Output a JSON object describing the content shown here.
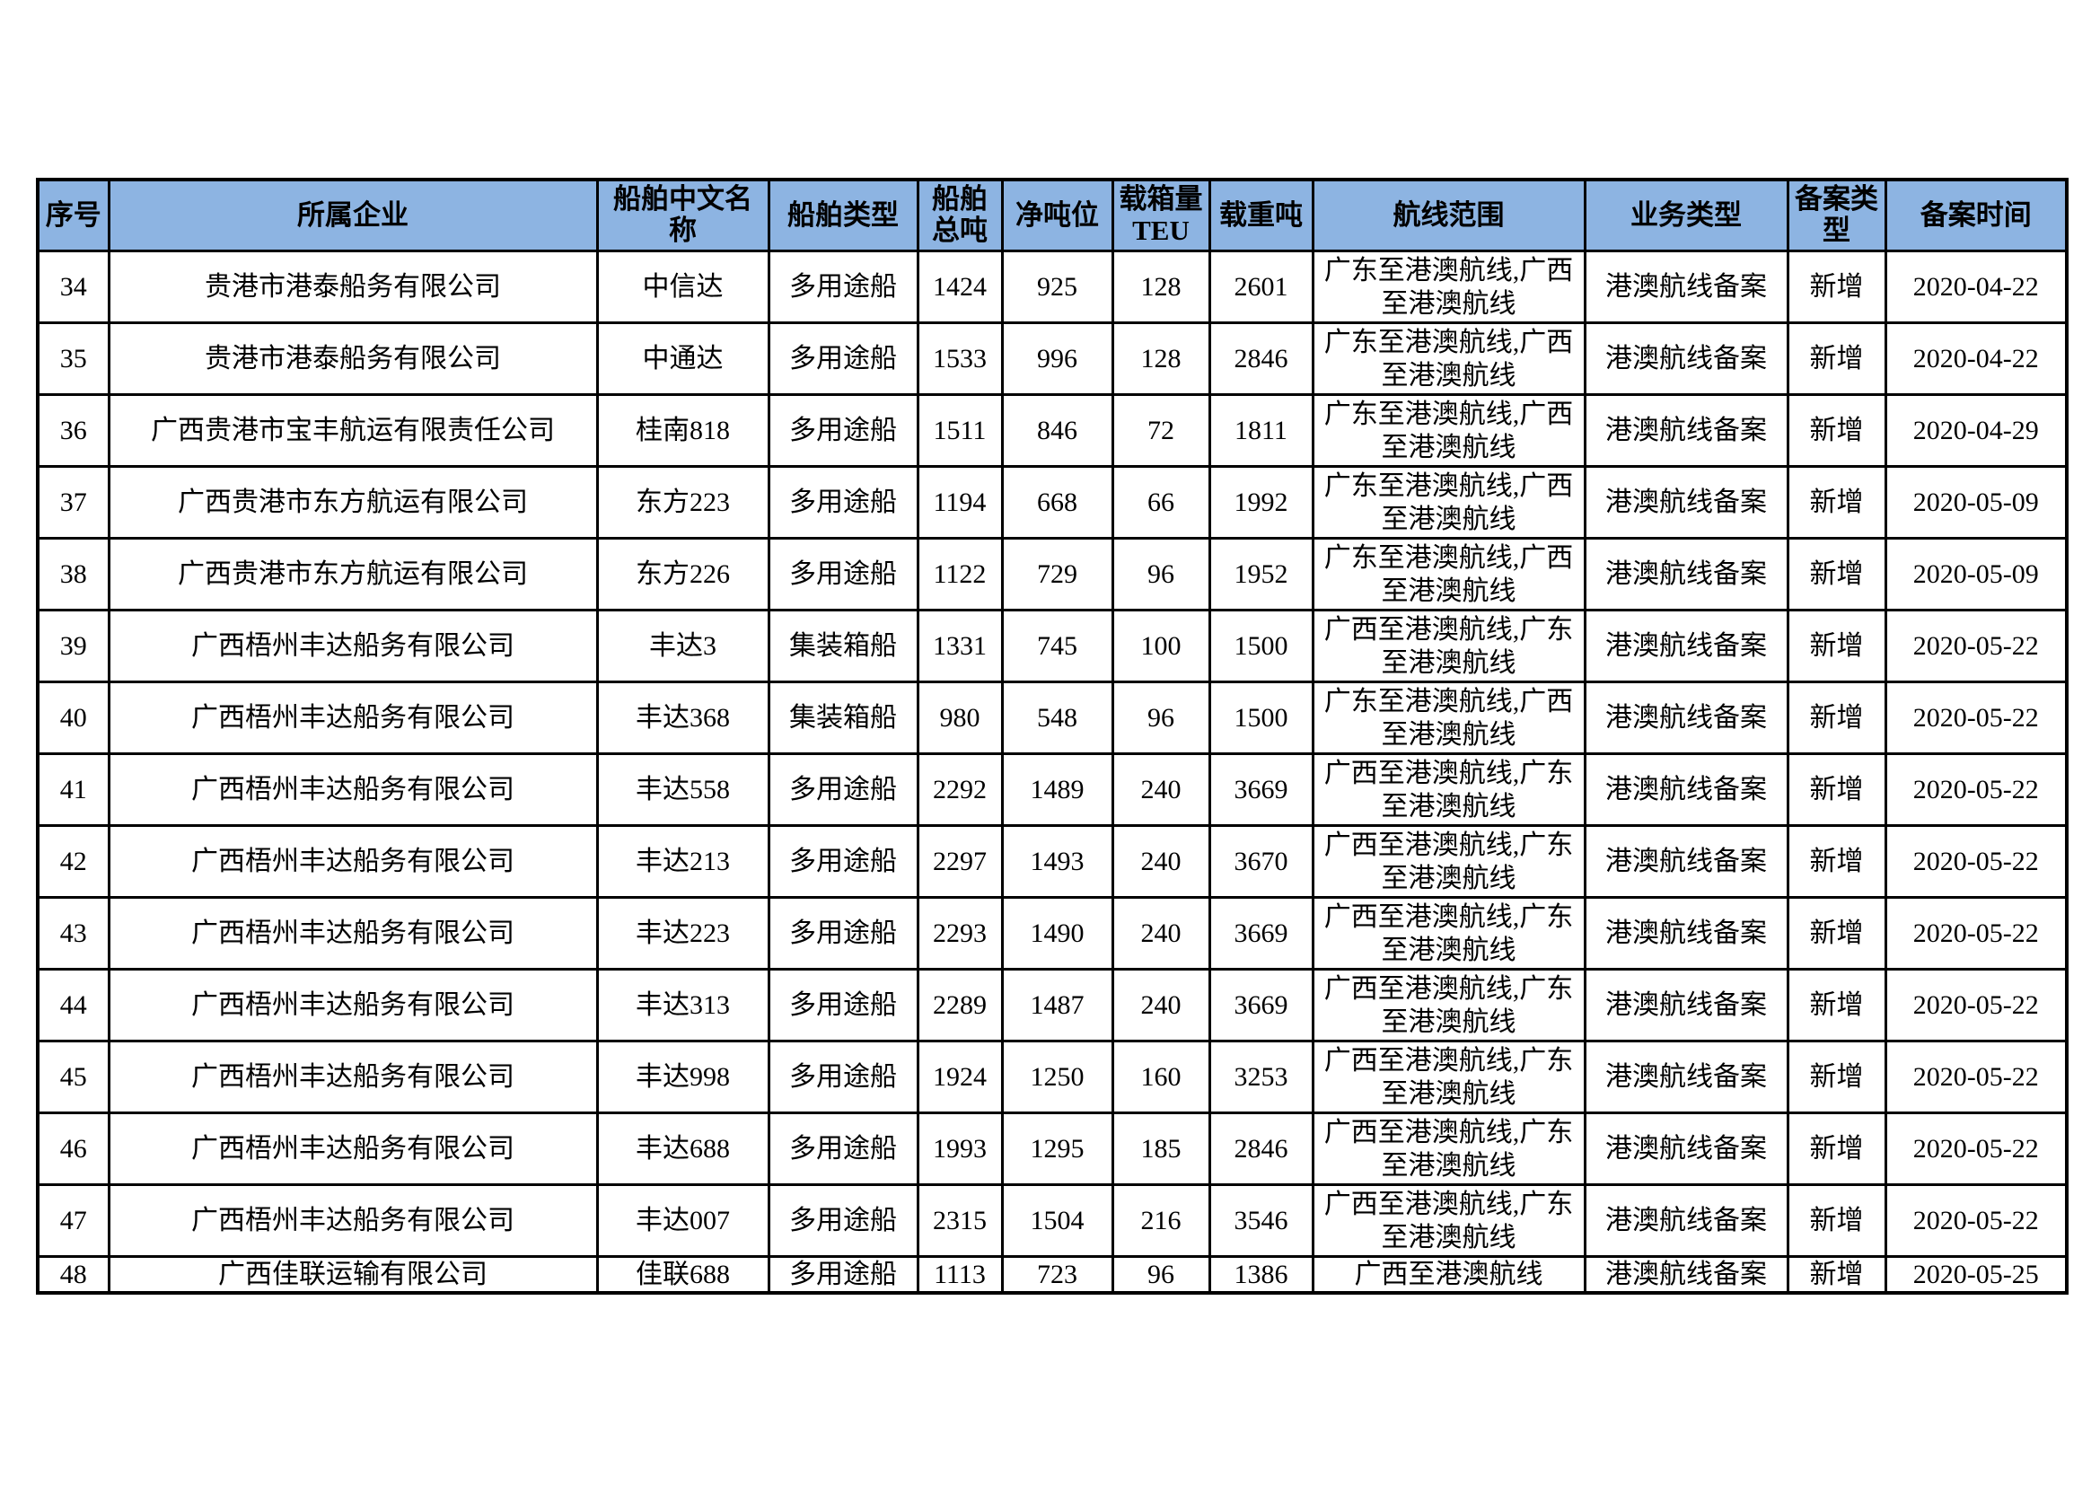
{
  "table": {
    "header_bg": "#8DB4E2",
    "border_color": "#000000",
    "columns": [
      "序号",
      "所属企业",
      "船舶中文名称",
      "船舶类型",
      "船舶总吨",
      "净吨位",
      "载箱量TEU",
      "载重吨",
      "航线范围",
      "业务类型",
      "备案类型",
      "备案时间"
    ],
    "column_keys": [
      "seq",
      "company",
      "ship-name",
      "ship-type",
      "gross-tonnage",
      "net-tonnage",
      "teu",
      "deadweight",
      "route",
      "business-type",
      "record-type",
      "record-date"
    ],
    "rows": [
      [
        "34",
        "贵港市港泰船务有限公司",
        "中信达",
        "多用途船",
        "1424",
        "925",
        "128",
        "2601",
        "广东至港澳航线,广西至港澳航线",
        "港澳航线备案",
        "新增",
        "2020-04-22"
      ],
      [
        "35",
        "贵港市港泰船务有限公司",
        "中通达",
        "多用途船",
        "1533",
        "996",
        "128",
        "2846",
        "广东至港澳航线,广西至港澳航线",
        "港澳航线备案",
        "新增",
        "2020-04-22"
      ],
      [
        "36",
        "广西贵港市宝丰航运有限责任公司",
        "桂南818",
        "多用途船",
        "1511",
        "846",
        "72",
        "1811",
        "广东至港澳航线,广西至港澳航线",
        "港澳航线备案",
        "新增",
        "2020-04-29"
      ],
      [
        "37",
        "广西贵港市东方航运有限公司",
        "东方223",
        "多用途船",
        "1194",
        "668",
        "66",
        "1992",
        "广东至港澳航线,广西至港澳航线",
        "港澳航线备案",
        "新增",
        "2020-05-09"
      ],
      [
        "38",
        "广西贵港市东方航运有限公司",
        "东方226",
        "多用途船",
        "1122",
        "729",
        "96",
        "1952",
        "广东至港澳航线,广西至港澳航线",
        "港澳航线备案",
        "新增",
        "2020-05-09"
      ],
      [
        "39",
        "广西梧州丰达船务有限公司",
        "丰达3",
        "集装箱船",
        "1331",
        "745",
        "100",
        "1500",
        "广西至港澳航线,广东至港澳航线",
        "港澳航线备案",
        "新增",
        "2020-05-22"
      ],
      [
        "40",
        "广西梧州丰达船务有限公司",
        "丰达368",
        "集装箱船",
        "980",
        "548",
        "96",
        "1500",
        "广东至港澳航线,广西至港澳航线",
        "港澳航线备案",
        "新增",
        "2020-05-22"
      ],
      [
        "41",
        "广西梧州丰达船务有限公司",
        "丰达558",
        "多用途船",
        "2292",
        "1489",
        "240",
        "3669",
        "广西至港澳航线,广东至港澳航线",
        "港澳航线备案",
        "新增",
        "2020-05-22"
      ],
      [
        "42",
        "广西梧州丰达船务有限公司",
        "丰达213",
        "多用途船",
        "2297",
        "1493",
        "240",
        "3670",
        "广西至港澳航线,广东至港澳航线",
        "港澳航线备案",
        "新增",
        "2020-05-22"
      ],
      [
        "43",
        "广西梧州丰达船务有限公司",
        "丰达223",
        "多用途船",
        "2293",
        "1490",
        "240",
        "3669",
        "广西至港澳航线,广东至港澳航线",
        "港澳航线备案",
        "新增",
        "2020-05-22"
      ],
      [
        "44",
        "广西梧州丰达船务有限公司",
        "丰达313",
        "多用途船",
        "2289",
        "1487",
        "240",
        "3669",
        "广西至港澳航线,广东至港澳航线",
        "港澳航线备案",
        "新增",
        "2020-05-22"
      ],
      [
        "45",
        "广西梧州丰达船务有限公司",
        "丰达998",
        "多用途船",
        "1924",
        "1250",
        "160",
        "3253",
        "广西至港澳航线,广东至港澳航线",
        "港澳航线备案",
        "新增",
        "2020-05-22"
      ],
      [
        "46",
        "广西梧州丰达船务有限公司",
        "丰达688",
        "多用途船",
        "1993",
        "1295",
        "185",
        "2846",
        "广西至港澳航线,广东至港澳航线",
        "港澳航线备案",
        "新增",
        "2020-05-22"
      ],
      [
        "47",
        "广西梧州丰达船务有限公司",
        "丰达007",
        "多用途船",
        "2315",
        "1504",
        "216",
        "3546",
        "广西至港澳航线,广东至港澳航线",
        "港澳航线备案",
        "新增",
        "2020-05-22"
      ],
      [
        "48",
        "广西佳联运输有限公司",
        "佳联688",
        "多用途船",
        "1113",
        "723",
        "96",
        "1386",
        "广西至港澳航线",
        "港澳航线备案",
        "新增",
        "2020-05-25"
      ]
    ]
  }
}
